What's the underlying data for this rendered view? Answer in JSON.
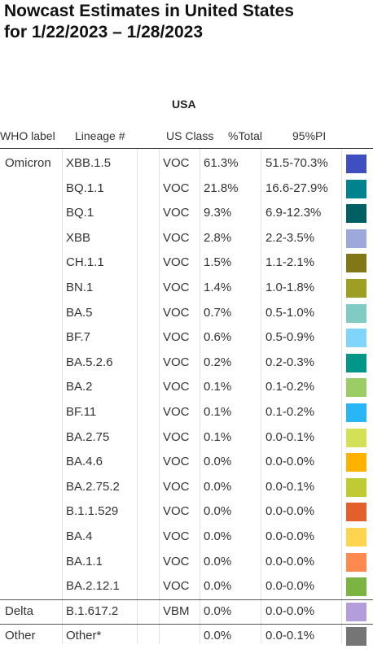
{
  "chart_data": {
    "type": "table",
    "title": "Nowcast Estimates in United States\nfor 1/22/2023 – 1/28/2023",
    "region": "USA",
    "columns": [
      "WHO label",
      "Lineage #",
      "US Class",
      "%Total",
      "95%PI"
    ],
    "rows": [
      {
        "who": "Omicron",
        "lineage": "XBB.1.5",
        "us_class": "VOC",
        "total": "61.3%",
        "pi": "51.5-70.3%",
        "color": "#3f4fc0"
      },
      {
        "who": "",
        "lineage": "BQ.1.1",
        "us_class": "VOC",
        "total": "21.8%",
        "pi": "16.6-27.9%",
        "color": "#00838f"
      },
      {
        "who": "",
        "lineage": "BQ.1",
        "us_class": "VOC",
        "total": "9.3%",
        "pi": "6.9-12.3%",
        "color": "#005f62"
      },
      {
        "who": "",
        "lineage": "XBB",
        "us_class": "VOC",
        "total": "2.8%",
        "pi": "2.2-3.5%",
        "color": "#9fa8da"
      },
      {
        "who": "",
        "lineage": "CH.1.1",
        "us_class": "VOC",
        "total": "1.5%",
        "pi": "1.1-2.1%",
        "color": "#827717"
      },
      {
        "who": "",
        "lineage": "BN.1",
        "us_class": "VOC",
        "total": "1.4%",
        "pi": "1.0-1.8%",
        "color": "#9e9d24"
      },
      {
        "who": "",
        "lineage": "BA.5",
        "us_class": "VOC",
        "total": "0.7%",
        "pi": "0.5-1.0%",
        "color": "#80cbc4"
      },
      {
        "who": "",
        "lineage": "BF.7",
        "us_class": "VOC",
        "total": "0.6%",
        "pi": "0.5-0.9%",
        "color": "#81d4fa"
      },
      {
        "who": "",
        "lineage": "BA.5.2.6",
        "us_class": "VOC",
        "total": "0.2%",
        "pi": "0.2-0.3%",
        "color": "#009688"
      },
      {
        "who": "",
        "lineage": "BA.2",
        "us_class": "VOC",
        "total": "0.1%",
        "pi": "0.1-0.2%",
        "color": "#9ccc65"
      },
      {
        "who": "",
        "lineage": "BF.11",
        "us_class": "VOC",
        "total": "0.1%",
        "pi": "0.1-0.2%",
        "color": "#29b6f6"
      },
      {
        "who": "",
        "lineage": "BA.2.75",
        "us_class": "VOC",
        "total": "0.1%",
        "pi": "0.0-0.1%",
        "color": "#d4e157"
      },
      {
        "who": "",
        "lineage": "BA.4.6",
        "us_class": "VOC",
        "total": "0.0%",
        "pi": "0.0-0.0%",
        "color": "#ffb300"
      },
      {
        "who": "",
        "lineage": "BA.2.75.2",
        "us_class": "VOC",
        "total": "0.0%",
        "pi": "0.0-0.1%",
        "color": "#c0ca33"
      },
      {
        "who": "",
        "lineage": "B.1.1.529",
        "us_class": "VOC",
        "total": "0.0%",
        "pi": "0.0-0.0%",
        "color": "#e35f2b"
      },
      {
        "who": "",
        "lineage": "BA.4",
        "us_class": "VOC",
        "total": "0.0%",
        "pi": "0.0-0.0%",
        "color": "#ffd54f"
      },
      {
        "who": "",
        "lineage": "BA.1.1",
        "us_class": "VOC",
        "total": "0.0%",
        "pi": "0.0-0.0%",
        "color": "#ff8a50"
      },
      {
        "who": "",
        "lineage": "BA.2.12.1",
        "us_class": "VOC",
        "total": "0.0%",
        "pi": "0.0-0.0%",
        "color": "#7cb342"
      },
      {
        "who": "Delta",
        "lineage": "B.1.617.2",
        "us_class": "VBM",
        "total": "0.0%",
        "pi": "0.0-0.0%",
        "color": "#b39ddb"
      },
      {
        "who": "Other",
        "lineage": "Other*",
        "us_class": "",
        "total": "0.0%",
        "pi": "0.0-0.1%",
        "color": "#757575"
      }
    ]
  }
}
